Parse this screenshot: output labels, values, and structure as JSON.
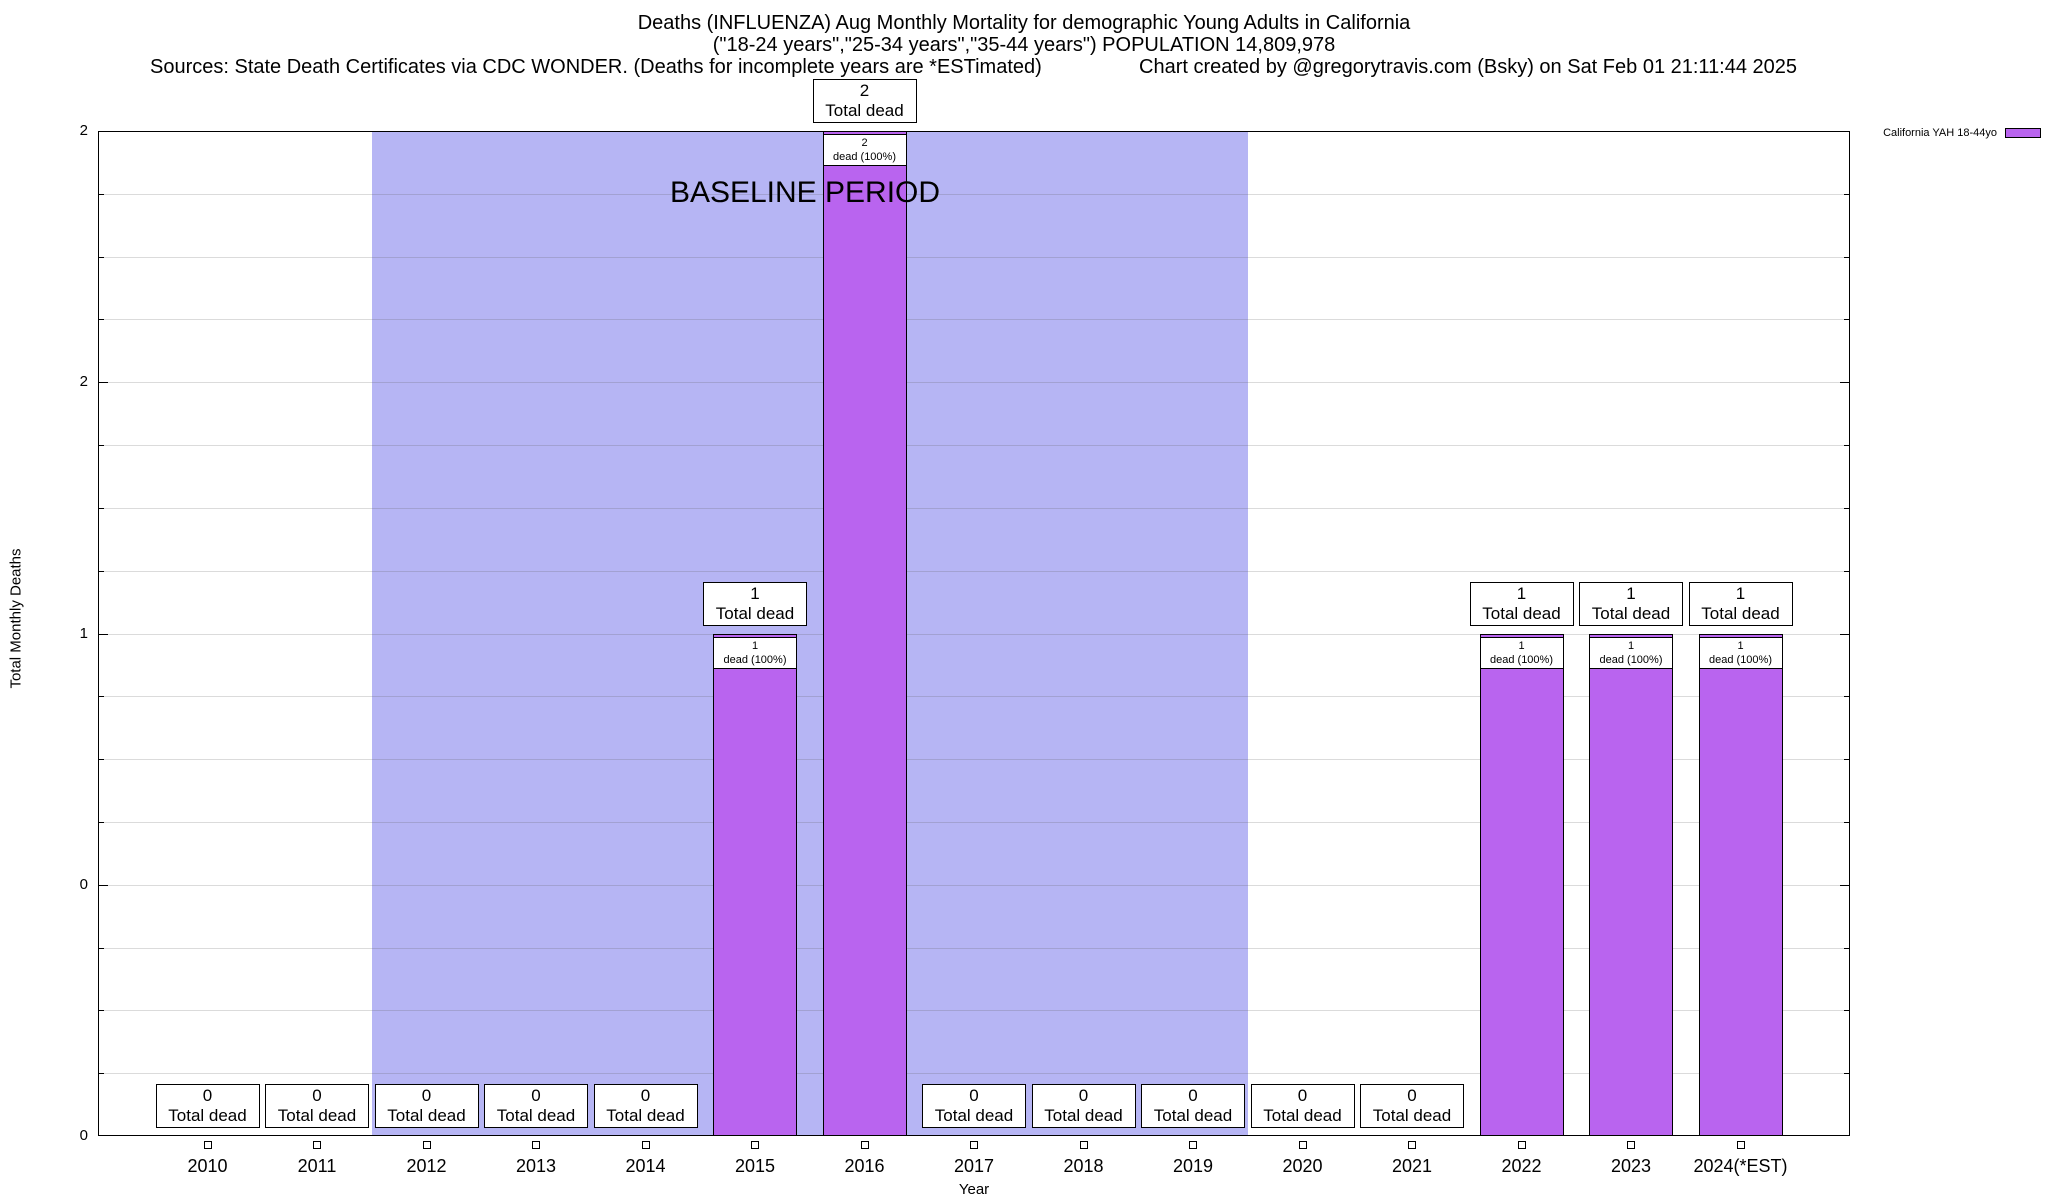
{
  "header": {
    "title_line1": "Deaths (INFLUENZA) Aug Monthly Mortality for demographic Young Adults in California",
    "title_line2": "(\"18-24 years\",\"25-34 years\",\"35-44 years\") POPULATION 14,809,978",
    "sources": "Sources: State Death Certificates via CDC WONDER. (Deaths for incomplete years are *ESTimated)",
    "credit": "Chart created by @gregorytravis.com (Bsky) on Sat Feb 01 21:11:44 2025"
  },
  "legend": {
    "label": "California YAH 18-44yo",
    "swatch_color": "#b964ef"
  },
  "baseline_band": {
    "label": "BASELINE PERIOD",
    "start_index": 2,
    "end_index": 9,
    "color": "#b6b5f4"
  },
  "axes": {
    "y_title": "Total Monthly Deaths",
    "x_title": "Year",
    "y_ticks": [
      {
        "value": 0,
        "label": "0"
      },
      {
        "value": 0.5,
        "label": "0"
      },
      {
        "value": 1,
        "label": "1"
      },
      {
        "value": 1.5,
        "label": "2"
      },
      {
        "value": 2,
        "label": "2"
      }
    ]
  },
  "labels": {
    "total_suffix": "Total dead",
    "pct_suffix": "dead (100%)"
  },
  "chart_data": {
    "type": "bar",
    "title": "Deaths (INFLUENZA) Aug Monthly Mortality for demographic Young Adults in California",
    "subtitle": "(\"18-24 years\",\"25-34 years\",\"35-44 years\") POPULATION 14,809,978",
    "categories": [
      "2010",
      "2011",
      "2012",
      "2013",
      "2014",
      "2015",
      "2016",
      "2017",
      "2018",
      "2019",
      "2020",
      "2021",
      "2022",
      "2023",
      "2024(*EST)"
    ],
    "series": [
      {
        "name": "California YAH 18-44yo",
        "color": "#b964ef",
        "values": [
          0,
          0,
          0,
          0,
          0,
          1,
          2,
          0,
          0,
          0,
          0,
          0,
          1,
          1,
          1
        ]
      }
    ],
    "xlabel": "Year",
    "ylabel": "Total Monthly Deaths",
    "ylim": [
      0,
      2
    ],
    "grid": true,
    "legend_position": "top-right",
    "baseline_period": {
      "label": "BASELINE PERIOD",
      "from_category": "2012",
      "to_category": "2019"
    },
    "bar_annotations": [
      {
        "category": "2010",
        "total": 0
      },
      {
        "category": "2011",
        "total": 0
      },
      {
        "category": "2012",
        "total": 0
      },
      {
        "category": "2013",
        "total": 0
      },
      {
        "category": "2014",
        "total": 0
      },
      {
        "category": "2015",
        "total": 1,
        "pct": "100%"
      },
      {
        "category": "2016",
        "total": 2,
        "pct": "100%"
      },
      {
        "category": "2017",
        "total": 0
      },
      {
        "category": "2018",
        "total": 0
      },
      {
        "category": "2019",
        "total": 0
      },
      {
        "category": "2020",
        "total": 0
      },
      {
        "category": "2021",
        "total": 0
      },
      {
        "category": "2022",
        "total": 1,
        "pct": "100%"
      },
      {
        "category": "2023",
        "total": 1,
        "pct": "100%"
      },
      {
        "category": "2024(*EST)",
        "total": 1,
        "pct": "100%"
      }
    ]
  }
}
